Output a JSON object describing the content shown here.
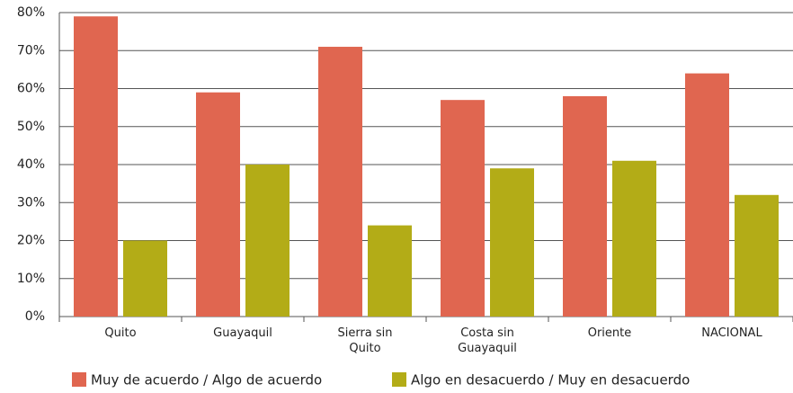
{
  "chart_data": {
    "type": "bar",
    "categories": [
      "Quito",
      "Guayaquil",
      "Sierra sin Quito",
      "Costa sin Guayaquil",
      "Oriente",
      "NACIONAL"
    ],
    "series": [
      {
        "name": "Muy de acuerdo / Algo de acuerdo",
        "color": "#e06650",
        "values": [
          79,
          59,
          71,
          57,
          58,
          64
        ]
      },
      {
        "name": "Algo en desacuerdo / Muy en desacuerdo",
        "color": "#b3ac17",
        "values": [
          20,
          40,
          24,
          39,
          41,
          32
        ]
      }
    ],
    "ylim": [
      0,
      80
    ],
    "yticks": [
      {
        "value": 0,
        "label": "0%"
      },
      {
        "value": 10,
        "label": "10%"
      },
      {
        "value": 20,
        "label": "20%"
      },
      {
        "value": 30,
        "label": "30%"
      },
      {
        "value": 40,
        "label": "40%"
      },
      {
        "value": 50,
        "label": "50%"
      },
      {
        "value": 60,
        "label": "60%"
      },
      {
        "value": 70,
        "label": "70%"
      },
      {
        "value": 80,
        "label": "80%"
      }
    ],
    "grid": true,
    "legend": "bottom"
  }
}
